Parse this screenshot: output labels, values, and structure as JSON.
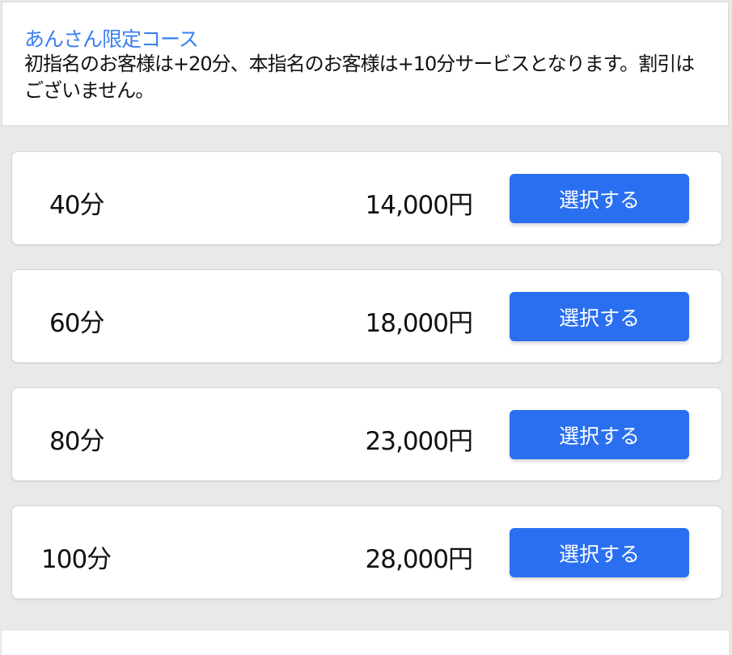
{
  "course": {
    "title": "あんさん限定コース",
    "description": "初指名のお客様は+20分、本指名のお客様は+10分サービスとなります。割引はございません。"
  },
  "accent_color": "#2a6ff0",
  "options": [
    {
      "duration": "40分",
      "price": "14,000円",
      "button": "選択する"
    },
    {
      "duration": "60分",
      "price": "18,000円",
      "button": "選択する"
    },
    {
      "duration": "80分",
      "price": "23,000円",
      "button": "選択する"
    },
    {
      "duration": "100分",
      "price": "28,000円",
      "button": "選択する"
    }
  ]
}
